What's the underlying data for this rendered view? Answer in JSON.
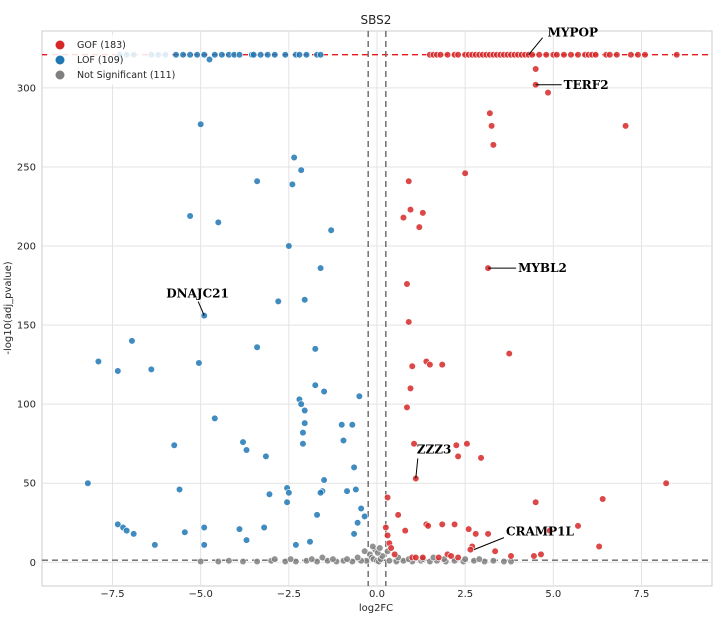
{
  "chart_data": {
    "type": "scatter",
    "title": "SBS2",
    "xlabel": "log2FC",
    "ylabel": "-log10(adj_pvalue)",
    "xlim": [
      -9.5,
      9.5
    ],
    "ylim": [
      -15,
      336
    ],
    "xticks": [
      -7.5,
      -5.0,
      -2.5,
      0.0,
      2.5,
      5.0,
      7.5
    ],
    "xtick_labels": [
      "−7.5",
      "−5.0",
      "−2.5",
      "0.0",
      "2.5",
      "5.0",
      "7.5"
    ],
    "yticks": [
      0,
      50,
      100,
      150,
      200,
      250,
      300
    ],
    "ytick_labels": [
      "0",
      "50",
      "100",
      "150",
      "200",
      "250",
      "300"
    ],
    "grid": true,
    "legend_placement": "top-left",
    "reference_lines": {
      "horizontal_top": 321,
      "horizontal_bottom": 1.3,
      "vertical": [
        -0.25,
        0.25
      ]
    },
    "series": [
      {
        "name": "GOF (183)",
        "color": "#d62728",
        "points": [
          [
            1.5,
            321
          ],
          [
            1.6,
            321
          ],
          [
            1.7,
            321
          ],
          [
            1.8,
            321
          ],
          [
            2.0,
            321
          ],
          [
            2.2,
            321
          ],
          [
            2.3,
            321
          ],
          [
            2.5,
            321
          ],
          [
            2.6,
            321
          ],
          [
            2.7,
            321
          ],
          [
            2.8,
            321
          ],
          [
            2.9,
            321
          ],
          [
            3.0,
            321
          ],
          [
            3.1,
            321
          ],
          [
            3.2,
            321
          ],
          [
            3.3,
            321
          ],
          [
            3.4,
            321
          ],
          [
            3.5,
            321
          ],
          [
            3.6,
            321
          ],
          [
            3.7,
            321
          ],
          [
            3.8,
            321
          ],
          [
            3.9,
            321
          ],
          [
            4.0,
            321
          ],
          [
            4.1,
            321
          ],
          [
            4.2,
            321
          ],
          [
            4.3,
            321
          ],
          [
            4.4,
            321
          ],
          [
            4.6,
            321
          ],
          [
            4.8,
            321
          ],
          [
            5.0,
            321
          ],
          [
            5.1,
            321
          ],
          [
            5.3,
            321
          ],
          [
            5.5,
            321
          ],
          [
            5.7,
            321
          ],
          [
            5.9,
            321
          ],
          [
            6.0,
            321
          ],
          [
            6.1,
            321
          ],
          [
            6.2,
            321
          ],
          [
            6.5,
            321
          ],
          [
            6.6,
            321
          ],
          [
            6.8,
            321
          ],
          [
            7.2,
            321
          ],
          [
            7.4,
            321
          ],
          [
            7.6,
            321
          ],
          [
            8.5,
            321
          ],
          [
            4.5,
            312
          ],
          [
            4.5,
            302
          ],
          [
            4.85,
            297
          ],
          [
            3.2,
            284
          ],
          [
            3.25,
            276
          ],
          [
            3.3,
            264
          ],
          [
            7.05,
            276
          ],
          [
            2.5,
            246
          ],
          [
            0.9,
            241
          ],
          [
            0.95,
            223
          ],
          [
            0.75,
            218
          ],
          [
            1.3,
            221
          ],
          [
            1.2,
            212
          ],
          [
            3.15,
            186
          ],
          [
            0.85,
            176
          ],
          [
            0.9,
            152
          ],
          [
            3.75,
            132
          ],
          [
            1.0,
            124
          ],
          [
            1.4,
            127
          ],
          [
            1.5,
            125
          ],
          [
            1.85,
            125
          ],
          [
            0.95,
            110
          ],
          [
            0.85,
            98
          ],
          [
            1.05,
            75
          ],
          [
            2.25,
            74
          ],
          [
            2.55,
            75
          ],
          [
            2.3,
            67
          ],
          [
            2.95,
            66
          ],
          [
            1.1,
            53
          ],
          [
            8.2,
            50
          ],
          [
            0.3,
            41
          ],
          [
            0.6,
            30
          ],
          [
            4.5,
            38
          ],
          [
            6.4,
            40
          ],
          [
            0.25,
            22
          ],
          [
            0.3,
            17
          ],
          [
            0.35,
            12
          ],
          [
            0.4,
            9
          ],
          [
            0.5,
            5
          ],
          [
            0.8,
            20
          ],
          [
            1.4,
            24
          ],
          [
            1.45,
            23
          ],
          [
            1.85,
            24
          ],
          [
            2.2,
            24
          ],
          [
            2.6,
            21
          ],
          [
            2.8,
            18
          ],
          [
            3.15,
            18
          ],
          [
            5.7,
            23
          ],
          [
            4.9,
            20
          ],
          [
            3.35,
            7
          ],
          [
            2.7,
            10
          ],
          [
            2.65,
            8
          ],
          [
            3.8,
            4
          ],
          [
            4.45,
            4
          ],
          [
            4.65,
            5
          ],
          [
            6.3,
            10
          ],
          [
            1.0,
            3
          ],
          [
            1.1,
            3
          ],
          [
            1.3,
            3
          ],
          [
            1.75,
            3
          ],
          [
            2.0,
            5
          ],
          [
            2.1,
            4
          ],
          [
            2.3,
            3
          ]
        ]
      },
      {
        "name": "LOF (109)",
        "color": "#1f77b4",
        "points": [
          [
            -7.3,
            321
          ],
          [
            -7.1,
            321
          ],
          [
            -6.9,
            321
          ],
          [
            -6.4,
            321
          ],
          [
            -6.2,
            321
          ],
          [
            -6.0,
            321
          ],
          [
            -5.7,
            321
          ],
          [
            -5.5,
            321
          ],
          [
            -5.3,
            321
          ],
          [
            -5.1,
            321
          ],
          [
            -4.9,
            321
          ],
          [
            -4.6,
            321
          ],
          [
            -4.4,
            321
          ],
          [
            -4.2,
            321
          ],
          [
            -4.05,
            321
          ],
          [
            -3.9,
            321
          ],
          [
            -3.55,
            321
          ],
          [
            -3.5,
            321
          ],
          [
            -3.3,
            321
          ],
          [
            -3.1,
            321
          ],
          [
            -2.9,
            321
          ],
          [
            -2.6,
            321
          ],
          [
            -2.3,
            321
          ],
          [
            -2.2,
            321
          ],
          [
            -2.0,
            321
          ],
          [
            -1.7,
            321
          ],
          [
            -1.6,
            321
          ],
          [
            -4.75,
            318
          ],
          [
            -5.0,
            277
          ],
          [
            -2.35,
            256
          ],
          [
            -2.15,
            248
          ],
          [
            -3.4,
            241
          ],
          [
            -2.4,
            239
          ],
          [
            -5.3,
            219
          ],
          [
            -4.5,
            215
          ],
          [
            -1.3,
            210
          ],
          [
            -2.5,
            200
          ],
          [
            -1.6,
            186
          ],
          [
            -4.9,
            156
          ],
          [
            -2.8,
            165
          ],
          [
            -2.05,
            166
          ],
          [
            -6.95,
            140
          ],
          [
            -7.9,
            127
          ],
          [
            -5.05,
            126
          ],
          [
            -6.4,
            122
          ],
          [
            -7.35,
            121
          ],
          [
            -3.4,
            136
          ],
          [
            -1.75,
            135
          ],
          [
            -1.75,
            112
          ],
          [
            -1.5,
            108
          ],
          [
            -0.5,
            105
          ],
          [
            -4.6,
            91
          ],
          [
            -2.2,
            103
          ],
          [
            -2.15,
            100
          ],
          [
            -2.05,
            96
          ],
          [
            -2.05,
            88
          ],
          [
            -2.1,
            82
          ],
          [
            -2.1,
            75
          ],
          [
            -1.0,
            87
          ],
          [
            -0.7,
            87
          ],
          [
            -0.95,
            77
          ],
          [
            -3.8,
            76
          ],
          [
            -3.7,
            71
          ],
          [
            -3.15,
            67
          ],
          [
            -5.75,
            74
          ],
          [
            -0.65,
            60
          ],
          [
            -0.6,
            46
          ],
          [
            -1.5,
            52
          ],
          [
            -1.55,
            45
          ],
          [
            -1.6,
            44
          ],
          [
            -0.85,
            45
          ],
          [
            -2.55,
            47
          ],
          [
            -2.5,
            44
          ],
          [
            -2.55,
            38
          ],
          [
            -3.05,
            43
          ],
          [
            -5.6,
            46
          ],
          [
            -8.2,
            50
          ],
          [
            -0.45,
            34
          ],
          [
            -0.35,
            29
          ],
          [
            -0.55,
            25
          ],
          [
            -1.7,
            30
          ],
          [
            -0.65,
            18
          ],
          [
            -7.35,
            24
          ],
          [
            -7.2,
            22
          ],
          [
            -7.1,
            20
          ],
          [
            -6.9,
            18
          ],
          [
            -3.9,
            21
          ],
          [
            -3.2,
            22
          ],
          [
            -4.9,
            22
          ],
          [
            -5.45,
            19
          ],
          [
            -3.7,
            14
          ],
          [
            -4.9,
            11
          ],
          [
            -6.3,
            11
          ],
          [
            -2.3,
            11
          ],
          [
            -1.9,
            13
          ]
        ]
      },
      {
        "name": "Not Significant (111)",
        "color": "#808080",
        "points": [
          [
            -0.2,
            5
          ],
          [
            -0.15,
            3
          ],
          [
            -0.1,
            2
          ],
          [
            0.0,
            1
          ],
          [
            0.05,
            0.5
          ],
          [
            0.1,
            2
          ],
          [
            0.15,
            4
          ],
          [
            -0.05,
            8
          ],
          [
            0.02,
            6
          ],
          [
            0.08,
            9
          ],
          [
            -0.12,
            10
          ],
          [
            -0.3,
            1
          ],
          [
            -0.45,
            1
          ],
          [
            -0.7,
            0.5
          ],
          [
            -0.95,
            1
          ],
          [
            -1.15,
            0.5
          ],
          [
            -1.4,
            1
          ],
          [
            -1.7,
            0.5
          ],
          [
            -2.0,
            1
          ],
          [
            -2.3,
            0.5
          ],
          [
            -2.6,
            0.5
          ],
          [
            -3.0,
            1
          ],
          [
            -3.4,
            0.5
          ],
          [
            -3.8,
            0.5
          ],
          [
            -4.2,
            1
          ],
          [
            -4.5,
            0.5
          ],
          [
            -5.0,
            0.5
          ],
          [
            0.35,
            1
          ],
          [
            0.55,
            0.5
          ],
          [
            0.75,
            1
          ],
          [
            1.0,
            0.5
          ],
          [
            1.25,
            1
          ],
          [
            1.5,
            0.5
          ],
          [
            1.7,
            1
          ],
          [
            1.95,
            0.5
          ],
          [
            2.2,
            1
          ],
          [
            2.45,
            0.5
          ],
          [
            2.75,
            1
          ],
          [
            3.05,
            0.5
          ],
          [
            3.3,
            1
          ],
          [
            3.6,
            0.5
          ],
          [
            3.8,
            0.5
          ],
          [
            -0.35,
            7
          ],
          [
            0.3,
            7
          ],
          [
            -0.55,
            3
          ],
          [
            0.6,
            3
          ],
          [
            -0.85,
            2
          ],
          [
            0.9,
            2
          ],
          [
            -1.25,
            2
          ],
          [
            1.3,
            2
          ],
          [
            -1.55,
            3
          ],
          [
            1.6,
            3
          ],
          [
            -1.85,
            2
          ],
          [
            1.9,
            2
          ],
          [
            -2.45,
            2
          ],
          [
            2.5,
            2
          ],
          [
            -2.9,
            2
          ],
          [
            2.9,
            2
          ]
        ]
      }
    ],
    "annotations": [
      {
        "label": "MYPOP",
        "point": [
          4.3,
          321
        ]
      },
      {
        "label": "TERF2",
        "point": [
          4.5,
          302
        ]
      },
      {
        "label": "MYBL2",
        "point": [
          3.15,
          186
        ]
      },
      {
        "label": "DNAJC21",
        "point": [
          -4.9,
          156
        ]
      },
      {
        "label": "ZZZ3",
        "point": [
          1.1,
          53
        ]
      },
      {
        "label": "CRAMP1L",
        "point": [
          2.75,
          8
        ]
      }
    ]
  }
}
